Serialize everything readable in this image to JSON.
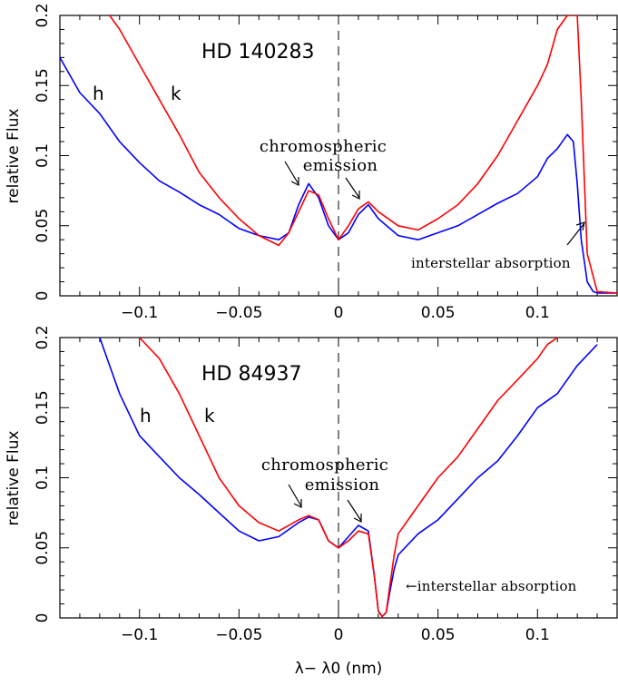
{
  "chart_data": [
    {
      "type": "line",
      "title": "HD 140283",
      "ylabel": "relative Flux",
      "xlabel": "",
      "xlim": [
        -0.14,
        0.14
      ],
      "ylim": [
        0,
        0.2
      ],
      "xticks": [
        "−0.1",
        "−0.05",
        "0",
        "0.05",
        "0.1"
      ],
      "xtick_values": [
        -0.1,
        -0.05,
        0,
        0.05,
        0.1
      ],
      "yticks": [
        "0",
        "0.05",
        "0.1",
        "0.15",
        "0.2"
      ],
      "ytick_values": [
        0,
        0.05,
        0.1,
        0.15,
        0.2
      ],
      "zero_line": "dashed",
      "series": [
        {
          "name": "h",
          "color": "#0000ff",
          "x": [
            -0.14,
            -0.13,
            -0.12,
            -0.11,
            -0.1,
            -0.09,
            -0.08,
            -0.07,
            -0.06,
            -0.05,
            -0.04,
            -0.03,
            -0.025,
            -0.02,
            -0.015,
            -0.01,
            -0.005,
            0,
            0.005,
            0.01,
            0.015,
            0.02,
            0.03,
            0.04,
            0.05,
            0.06,
            0.07,
            0.08,
            0.09,
            0.1,
            0.105,
            0.11,
            0.115,
            0.118,
            0.12,
            0.122,
            0.125,
            0.128,
            0.13,
            0.14
          ],
          "y": [
            0.17,
            0.145,
            0.13,
            0.11,
            0.095,
            0.082,
            0.074,
            0.065,
            0.058,
            0.048,
            0.043,
            0.04,
            0.045,
            0.065,
            0.08,
            0.07,
            0.05,
            0.04,
            0.045,
            0.058,
            0.065,
            0.055,
            0.043,
            0.04,
            0.045,
            0.05,
            0.058,
            0.066,
            0.073,
            0.085,
            0.098,
            0.105,
            0.115,
            0.11,
            0.08,
            0.04,
            0.01,
            0.003,
            0.002,
            0.002
          ]
        },
        {
          "name": "k",
          "color": "#ff0000",
          "x": [
            -0.115,
            -0.11,
            -0.1,
            -0.09,
            -0.08,
            -0.07,
            -0.06,
            -0.05,
            -0.04,
            -0.03,
            -0.025,
            -0.02,
            -0.015,
            -0.01,
            -0.005,
            0,
            0.005,
            0.01,
            0.015,
            0.02,
            0.03,
            0.04,
            0.05,
            0.06,
            0.07,
            0.08,
            0.09,
            0.1,
            0.105,
            0.11,
            0.115,
            0.118,
            0.12,
            0.122,
            0.125,
            0.13,
            0.14
          ],
          "y": [
            0.2,
            0.19,
            0.165,
            0.14,
            0.115,
            0.088,
            0.07,
            0.055,
            0.043,
            0.036,
            0.045,
            0.06,
            0.075,
            0.072,
            0.055,
            0.04,
            0.05,
            0.062,
            0.067,
            0.06,
            0.05,
            0.047,
            0.055,
            0.065,
            0.08,
            0.1,
            0.125,
            0.15,
            0.165,
            0.19,
            0.2,
            0.2,
            0.2,
            0.14,
            0.03,
            0.003,
            0.002
          ]
        }
      ],
      "annotations": {
        "star": "HD 140283",
        "h_label": "h",
        "k_label": "k",
        "chromo_line1": "chromospheric",
        "chromo_line2": "emission",
        "absorption": "interstellar absorption"
      }
    },
    {
      "type": "line",
      "title": "HD 84937",
      "ylabel": "relative Flux",
      "xlabel": "λ− λ0 (nm)",
      "xlim": [
        -0.14,
        0.14
      ],
      "ylim": [
        0,
        0.2
      ],
      "xticks": [
        "−0.1",
        "−0.05",
        "0",
        "0.05",
        "0.1"
      ],
      "xtick_values": [
        -0.1,
        -0.05,
        0,
        0.05,
        0.1
      ],
      "yticks": [
        "0",
        "0.05",
        "0.1",
        "0.15",
        "0.2"
      ],
      "ytick_values": [
        0,
        0.05,
        0.1,
        0.15,
        0.2
      ],
      "zero_line": "dashed",
      "series": [
        {
          "name": "h",
          "color": "#0000ff",
          "x": [
            -0.12,
            -0.115,
            -0.11,
            -0.1,
            -0.09,
            -0.08,
            -0.07,
            -0.06,
            -0.05,
            -0.04,
            -0.03,
            -0.02,
            -0.015,
            -0.01,
            -0.005,
            0,
            0.005,
            0.01,
            0.015,
            0.018,
            0.02,
            0.022,
            0.024,
            0.026,
            0.028,
            0.03,
            0.04,
            0.05,
            0.06,
            0.07,
            0.08,
            0.09,
            0.1,
            0.11,
            0.12,
            0.13
          ],
          "y": [
            0.2,
            0.18,
            0.16,
            0.13,
            0.115,
            0.1,
            0.088,
            0.075,
            0.062,
            0.055,
            0.058,
            0.068,
            0.072,
            0.07,
            0.055,
            0.05,
            0.058,
            0.066,
            0.062,
            0.03,
            0.005,
            0.001,
            0.004,
            0.02,
            0.035,
            0.045,
            0.06,
            0.07,
            0.085,
            0.1,
            0.112,
            0.13,
            0.15,
            0.16,
            0.18,
            0.195
          ]
        },
        {
          "name": "k",
          "color": "#ff0000",
          "x": [
            -0.1,
            -0.09,
            -0.08,
            -0.07,
            -0.06,
            -0.05,
            -0.04,
            -0.03,
            -0.02,
            -0.015,
            -0.01,
            -0.005,
            0,
            0.005,
            0.01,
            0.015,
            0.018,
            0.02,
            0.022,
            0.024,
            0.026,
            0.028,
            0.03,
            0.04,
            0.05,
            0.06,
            0.07,
            0.08,
            0.09,
            0.1,
            0.105,
            0.11
          ],
          "y": [
            0.2,
            0.185,
            0.16,
            0.13,
            0.1,
            0.08,
            0.068,
            0.062,
            0.07,
            0.073,
            0.07,
            0.055,
            0.05,
            0.055,
            0.062,
            0.06,
            0.03,
            0.005,
            0.001,
            0.004,
            0.025,
            0.045,
            0.06,
            0.08,
            0.1,
            0.115,
            0.135,
            0.155,
            0.17,
            0.185,
            0.195,
            0.2
          ]
        }
      ],
      "annotations": {
        "star": "HD 84937",
        "h_label": "h",
        "k_label": "k",
        "chromo_line1": "chromospheric",
        "chromo_line2": "emission",
        "absorption": "←interstellar absorption"
      }
    }
  ]
}
